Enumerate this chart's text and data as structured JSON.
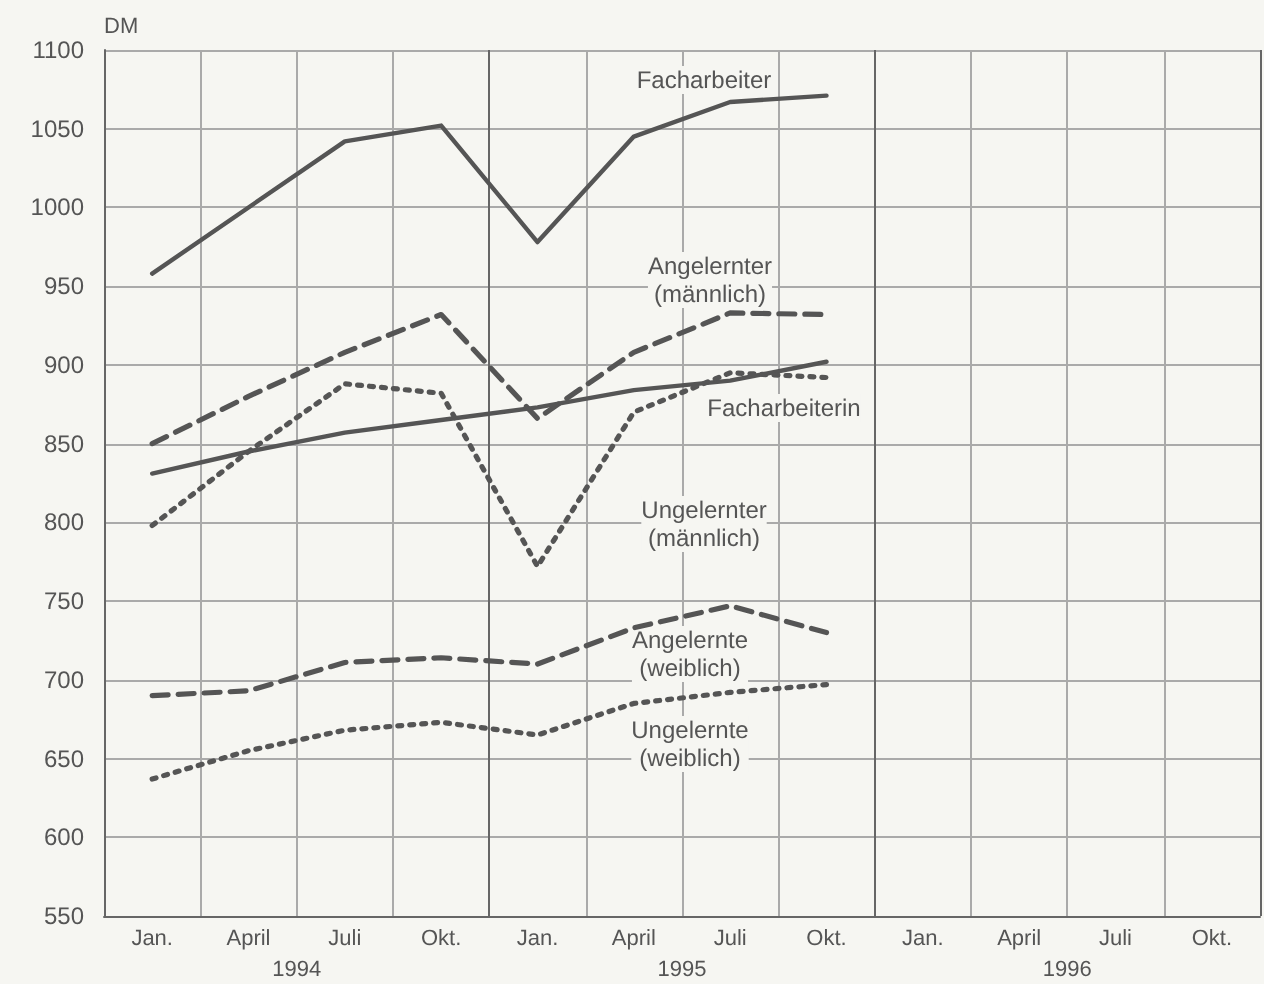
{
  "chart_data": {
    "type": "line",
    "ylabel": "DM",
    "categories": [
      "Jan.",
      "April",
      "Juli",
      "Okt.",
      "Jan.",
      "April",
      "Juli",
      "Okt.",
      "Jan.",
      "April",
      "Juli",
      "Okt."
    ],
    "annotations": [
      "1994",
      "1995",
      "1996"
    ],
    "ylim": [
      550,
      1100
    ],
    "yticks": [
      550,
      600,
      650,
      700,
      750,
      800,
      850,
      900,
      950,
      1000,
      1050,
      1100
    ],
    "grid": true,
    "legend": false,
    "marker": "none",
    "series": [
      {
        "name": "Facharbeiter",
        "color": "#555555",
        "line_style": "solid",
        "values": [
          958,
          1000,
          1042,
          1052,
          978,
          1045,
          1067,
          1071,
          null,
          null,
          null,
          null
        ]
      },
      {
        "name": "Angelernter (männlich)",
        "color": "#555555",
        "line_style": "dashed",
        "values": [
          850,
          880,
          908,
          932,
          866,
          908,
          933,
          932,
          null,
          null,
          null,
          null
        ]
      },
      {
        "name": "Facharbeiterin",
        "color": "#555555",
        "line_style": "solid",
        "values": [
          831,
          845,
          857,
          865,
          873,
          884,
          890,
          902,
          null,
          null,
          null,
          null
        ]
      },
      {
        "name": "Ungelernter (männlich)",
        "color": "#555555",
        "line_style": "dotted",
        "values": [
          798,
          845,
          888,
          882,
          772,
          870,
          895,
          892,
          null,
          null,
          null,
          null
        ]
      },
      {
        "name": "Angelernte (weiblich)",
        "color": "#555555",
        "line_style": "dashed",
        "values": [
          690,
          693,
          711,
          714,
          710,
          733,
          747,
          730,
          null,
          null,
          null,
          null
        ]
      },
      {
        "name": "Ungelernte (weiblich)",
        "color": "#555555",
        "line_style": "dotted",
        "values": [
          637,
          655,
          668,
          673,
          665,
          685,
          692,
          697,
          null,
          null,
          null,
          null
        ]
      }
    ]
  }
}
